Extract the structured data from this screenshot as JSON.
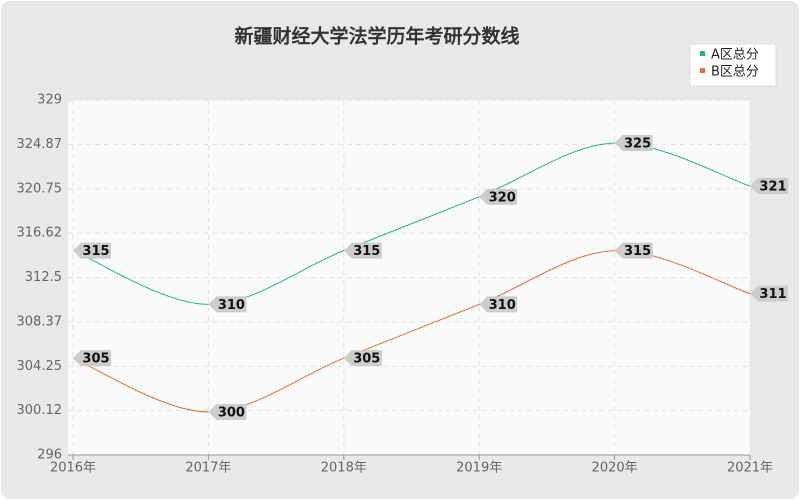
{
  "chart_data": {
    "type": "line",
    "title": "新疆财经大学法学历年考研分数线",
    "categories": [
      "2016年",
      "2017年",
      "2018年",
      "2019年",
      "2020年",
      "2021年"
    ],
    "series": [
      {
        "name": "A区总分",
        "color": "#2ab38a",
        "values": [
          315,
          310,
          315,
          320,
          325,
          321
        ]
      },
      {
        "name": "B区总分",
        "color": "#e0703f",
        "values": [
          305,
          300,
          305,
          310,
          315,
          311
        ]
      }
    ],
    "ylim": [
      296,
      329
    ],
    "yticks": [
      296,
      300.12,
      304.25,
      308.37,
      312.5,
      316.62,
      320.75,
      324.87,
      329
    ],
    "grid": true,
    "smooth": true,
    "legend": "top-right"
  }
}
